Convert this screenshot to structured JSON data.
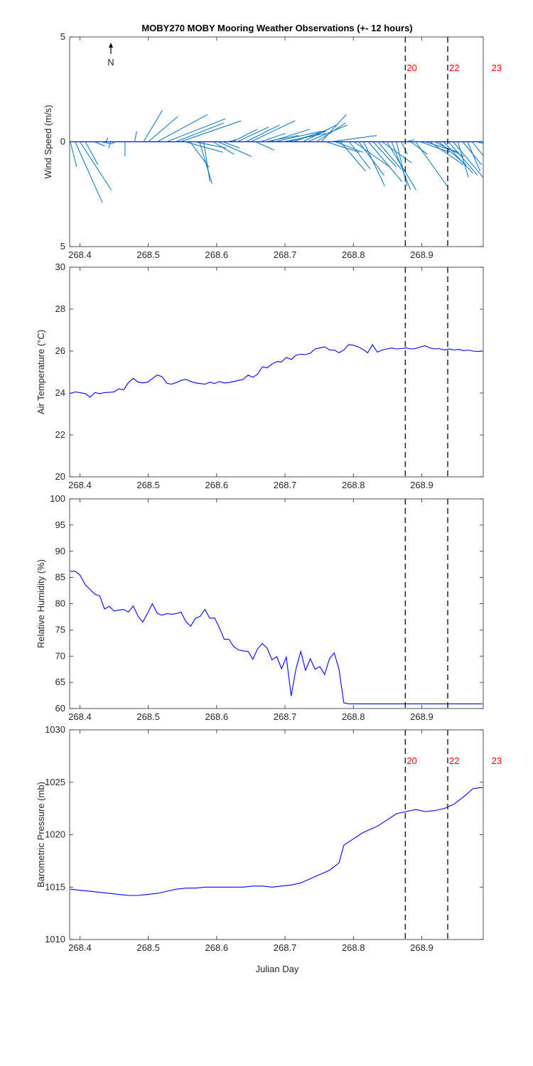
{
  "title": "MOBY270 MOBY Mooring Weather Observations (+- 12 hours)",
  "colors": {
    "line": "#0000ff",
    "stick": "#0072bd",
    "hour_label": "#ff0000",
    "axis": "#262626"
  },
  "north_label": "N",
  "xlabel": "Julian Day",
  "chart_data": [
    {
      "id": "wind",
      "type": "line",
      "title": "",
      "ylabel": "Wind Speed (m/s)",
      "xlim": [
        268.385,
        268.99
      ],
      "ylim": [
        -5,
        5
      ],
      "yticks": [
        -5,
        0,
        5
      ],
      "ytick_labels": [
        "5",
        "0",
        "5"
      ],
      "xticks": [
        268.4,
        268.5,
        268.6,
        268.7,
        268.8,
        268.9
      ],
      "xtick_labels": [
        "268.4",
        "268.5",
        "268.6",
        "268.7",
        "268.8",
        "268.9"
      ],
      "vlines": [
        268.876,
        268.938
      ],
      "hour_labels": [
        {
          "x": 268.876,
          "text": "20"
        },
        {
          "x": 268.938,
          "text": "22"
        },
        {
          "x": 269.0,
          "text": "23"
        }
      ],
      "sticks": [
        {
          "x": 268.386,
          "u": 0.3,
          "v": -1.2
        },
        {
          "x": 268.393,
          "u": 1.3,
          "v": -2.9
        },
        {
          "x": 268.4,
          "u": 1.5,
          "v": -2.3
        },
        {
          "x": 268.408,
          "u": 0.6,
          "v": -1.1
        },
        {
          "x": 268.421,
          "u": 0.5,
          "v": -0.2
        },
        {
          "x": 268.431,
          "u": 0.5,
          "v": -0.1
        },
        {
          "x": 268.438,
          "u": 0.1,
          "v": 0.2
        },
        {
          "x": 268.445,
          "u": -0.1,
          "v": -0.3
        },
        {
          "x": 268.452,
          "u": -0.2,
          "v": -0.1
        },
        {
          "x": 268.466,
          "u": 0.0,
          "v": -0.7
        },
        {
          "x": 268.48,
          "u": 0.1,
          "v": 0.5
        },
        {
          "x": 268.493,
          "u": 0.9,
          "v": 1.5
        },
        {
          "x": 268.5,
          "u": 1.4,
          "v": 1.2
        },
        {
          "x": 268.513,
          "u": 2.4,
          "v": 1.3
        },
        {
          "x": 268.527,
          "u": 2.8,
          "v": 1.1
        },
        {
          "x": 268.54,
          "u": 2.3,
          "v": 0.9
        },
        {
          "x": 268.547,
          "u": 2.9,
          "v": 1.0
        },
        {
          "x": 268.554,
          "u": 1.8,
          "v": -0.5
        },
        {
          "x": 268.561,
          "u": 0.9,
          "v": -1.2
        },
        {
          "x": 268.568,
          "u": 1.5,
          "v": -0.3
        },
        {
          "x": 268.575,
          "u": 0.6,
          "v": -2.0
        },
        {
          "x": 268.581,
          "u": 0.3,
          "v": -1.9
        },
        {
          "x": 268.595,
          "u": 1.0,
          "v": -0.6
        },
        {
          "x": 268.602,
          "u": 1.6,
          "v": -0.7
        },
        {
          "x": 268.609,
          "u": 0.8,
          "v": -0.3
        },
        {
          "x": 268.616,
          "u": 0.4,
          "v": 0.1
        },
        {
          "x": 268.623,
          "u": 1.2,
          "v": 0.6
        },
        {
          "x": 268.63,
          "u": 1.5,
          "v": 0.7
        },
        {
          "x": 268.643,
          "u": 1.6,
          "v": 0.8
        },
        {
          "x": 268.65,
          "u": 2.1,
          "v": 1.0
        },
        {
          "x": 268.657,
          "u": 0.9,
          "v": -0.4
        },
        {
          "x": 268.664,
          "u": 1.2,
          "v": 0.4
        },
        {
          "x": 268.671,
          "u": 1.6,
          "v": 0.3
        },
        {
          "x": 268.678,
          "u": 1.9,
          "v": 0.6
        },
        {
          "x": 268.685,
          "u": 2.2,
          "v": 0.5
        },
        {
          "x": 268.698,
          "u": 2.0,
          "v": 0.4
        },
        {
          "x": 268.705,
          "u": 1.8,
          "v": 0.5
        },
        {
          "x": 268.712,
          "u": 1.7,
          "v": 0.6
        },
        {
          "x": 268.726,
          "u": 1.6,
          "v": 0.8
        },
        {
          "x": 268.733,
          "u": 1.9,
          "v": 0.8
        },
        {
          "x": 268.746,
          "u": 1.4,
          "v": 0.9
        },
        {
          "x": 268.753,
          "u": 1.2,
          "v": 1.3
        },
        {
          "x": 268.76,
          "u": 1.6,
          "v": -0.5
        },
        {
          "x": 268.767,
          "u": 2.2,
          "v": 0.3
        },
        {
          "x": 268.774,
          "u": 1.3,
          "v": -0.5
        },
        {
          "x": 268.781,
          "u": 1.2,
          "v": -1.4
        },
        {
          "x": 268.794,
          "u": 1.0,
          "v": -1.3
        },
        {
          "x": 268.801,
          "u": 1.7,
          "v": -1.2
        },
        {
          "x": 268.808,
          "u": 1.2,
          "v": -1.6
        },
        {
          "x": 268.815,
          "u": 1.0,
          "v": -2.1
        },
        {
          "x": 268.822,
          "u": 1.6,
          "v": -1.9
        },
        {
          "x": 268.829,
          "u": 1.1,
          "v": -1.2
        },
        {
          "x": 268.836,
          "u": 1.1,
          "v": -1.3
        },
        {
          "x": 268.842,
          "u": 1.4,
          "v": -1.0
        },
        {
          "x": 268.849,
          "u": 1.4,
          "v": -2.3
        },
        {
          "x": 268.856,
          "u": 0.9,
          "v": -2.3
        },
        {
          "x": 268.863,
          "u": 0.5,
          "v": -2.1
        },
        {
          "x": 268.87,
          "u": 0.3,
          "v": -0.6
        },
        {
          "x": 268.877,
          "u": 0.4,
          "v": 0.1
        },
        {
          "x": 268.884,
          "u": 0.8,
          "v": -0.6
        },
        {
          "x": 268.891,
          "u": 1.5,
          "v": -2.1
        },
        {
          "x": 268.898,
          "u": 1.4,
          "v": -0.5
        },
        {
          "x": 268.905,
          "u": 1.6,
          "v": -0.5
        },
        {
          "x": 268.912,
          "u": 1.6,
          "v": -1.1
        },
        {
          "x": 268.919,
          "u": 1.4,
          "v": -0.7
        },
        {
          "x": 268.925,
          "u": 1.3,
          "v": -1.1
        },
        {
          "x": 268.932,
          "u": 1.4,
          "v": -1.5
        },
        {
          "x": 268.939,
          "u": 1.4,
          "v": -1.6
        },
        {
          "x": 268.946,
          "u": 1.6,
          "v": -1.9
        },
        {
          "x": 268.953,
          "u": 0.5,
          "v": -1.7
        },
        {
          "x": 268.96,
          "u": 0.9,
          "v": -1.1
        },
        {
          "x": 268.967,
          "u": 0.6,
          "v": -1.4
        },
        {
          "x": 268.974,
          "u": 1.1,
          "v": -1.4
        },
        {
          "x": 268.981,
          "u": 1.4,
          "v": -0.4
        },
        {
          "x": 268.988,
          "u": 0.6,
          "v": -0.3
        }
      ]
    },
    {
      "id": "temp",
      "type": "line",
      "ylabel": "Air Temperature (°C)",
      "xlim": [
        268.385,
        268.99
      ],
      "ylim": [
        20,
        30
      ],
      "yticks": [
        20,
        22,
        24,
        26,
        28,
        30
      ],
      "ytick_labels": [
        "20",
        "22",
        "24",
        "26",
        "28",
        "30"
      ],
      "xticks": [
        268.4,
        268.5,
        268.6,
        268.7,
        268.8,
        268.9
      ],
      "xtick_labels": [
        "268.4",
        "268.5",
        "268.6",
        "268.7",
        "268.8",
        "268.9"
      ],
      "vlines": [
        268.876,
        268.938
      ],
      "x": [
        268.386,
        268.393,
        268.4,
        268.408,
        268.415,
        268.422,
        268.429,
        268.436,
        268.443,
        268.45,
        268.457,
        268.464,
        268.471,
        268.478,
        268.485,
        268.492,
        268.499,
        268.506,
        268.513,
        268.52,
        268.527,
        268.534,
        268.541,
        268.548,
        268.555,
        268.562,
        268.569,
        268.576,
        268.583,
        268.59,
        268.597,
        268.604,
        268.611,
        268.618,
        268.625,
        268.632,
        268.639,
        268.646,
        268.653,
        268.66,
        268.667,
        268.674,
        268.681,
        268.688,
        268.695,
        268.702,
        268.709,
        268.716,
        268.723,
        268.73,
        268.737,
        268.744,
        268.751,
        268.758,
        268.765,
        268.772,
        268.779,
        268.786,
        268.793,
        268.8,
        268.807,
        268.814,
        268.821,
        268.828,
        268.835,
        268.842,
        268.849,
        268.856,
        268.863,
        268.87,
        268.877,
        268.884,
        268.891,
        268.898,
        268.905,
        268.912,
        268.919,
        268.926,
        268.933,
        268.94,
        268.947,
        268.954,
        268.961,
        268.968,
        268.975,
        268.982,
        268.989
      ],
      "y": [
        23.98,
        24.05,
        24.02,
        23.97,
        23.8,
        24.02,
        23.97,
        24.02,
        24.03,
        24.05,
        24.2,
        24.15,
        24.5,
        24.7,
        24.52,
        24.48,
        24.52,
        24.68,
        24.86,
        24.78,
        24.47,
        24.42,
        24.5,
        24.6,
        24.65,
        24.55,
        24.48,
        24.45,
        24.42,
        24.52,
        24.45,
        24.55,
        24.48,
        24.5,
        24.55,
        24.6,
        24.65,
        24.85,
        24.75,
        24.9,
        25.25,
        25.2,
        25.38,
        25.5,
        25.48,
        25.7,
        25.6,
        25.8,
        25.85,
        25.83,
        25.9,
        26.1,
        26.15,
        26.2,
        26.05,
        26.05,
        25.92,
        26.05,
        26.3,
        26.28,
        26.2,
        26.08,
        25.92,
        26.3,
        25.95,
        26.05,
        26.1,
        26.15,
        26.1,
        26.12,
        26.15,
        26.1,
        26.12,
        26.2,
        26.25,
        26.15,
        26.1,
        26.12,
        26.05,
        26.1,
        26.05,
        26.08,
        26.02,
        26.05,
        26.0,
        25.98,
        26.0
      ]
    },
    {
      "id": "rh",
      "type": "line",
      "ylabel": "Relative Humidity (%)",
      "xlim": [
        268.385,
        268.99
      ],
      "ylim": [
        60,
        100
      ],
      "yticks": [
        60,
        65,
        70,
        75,
        80,
        85,
        90,
        95,
        100
      ],
      "ytick_labels": [
        "60",
        "65",
        "70",
        "75",
        "80",
        "85",
        "90",
        "95",
        "100"
      ],
      "xticks": [
        268.4,
        268.5,
        268.6,
        268.7,
        268.8,
        268.9
      ],
      "xtick_labels": [
        "268.4",
        "268.5",
        "268.6",
        "268.7",
        "268.8",
        "268.9"
      ],
      "vlines": [
        268.876,
        268.938
      ],
      "x": [
        268.386,
        268.393,
        268.4,
        268.408,
        268.415,
        268.422,
        268.429,
        268.436,
        268.443,
        268.45,
        268.457,
        268.464,
        268.471,
        268.478,
        268.485,
        268.492,
        268.499,
        268.506,
        268.513,
        268.52,
        268.527,
        268.534,
        268.541,
        268.548,
        268.555,
        268.562,
        268.569,
        268.576,
        268.583,
        268.59,
        268.597,
        268.604,
        268.611,
        268.618,
        268.625,
        268.632,
        268.639,
        268.646,
        268.653,
        268.66,
        268.667,
        268.674,
        268.681,
        268.688,
        268.695,
        268.702,
        268.709,
        268.716,
        268.723,
        268.73,
        268.737,
        268.744,
        268.751,
        268.758,
        268.765,
        268.772,
        268.779,
        268.786,
        268.793,
        268.8,
        268.807,
        268.814,
        268.821,
        268.828,
        268.835,
        268.842,
        268.849,
        268.856,
        268.863,
        268.87,
        268.877,
        268.884,
        268.891,
        268.898,
        268.905,
        268.912,
        268.919,
        268.926,
        268.933,
        268.94,
        268.947,
        268.954,
        268.961,
        268.968,
        268.975,
        268.982,
        268.989
      ],
      "y": [
        86.2,
        86.2,
        85.5,
        83.6,
        82.7,
        81.8,
        81.5,
        79.0,
        79.5,
        78.6,
        78.8,
        78.9,
        78.4,
        79.6,
        77.6,
        76.5,
        78.2,
        80.0,
        78.2,
        77.8,
        78.1,
        78.0,
        78.1,
        78.4,
        76.6,
        75.7,
        77.2,
        77.6,
        78.9,
        77.2,
        77.3,
        75.4,
        73.2,
        73.2,
        71.8,
        71.2,
        71.0,
        70.9,
        69.4,
        71.4,
        72.4,
        71.5,
        69.3,
        69.9,
        67.6,
        69.8,
        62.4,
        67.5,
        70.9,
        67.3,
        69.5,
        67.5,
        68.0,
        66.5,
        69.5,
        70.6,
        67.5,
        61.1,
        60.9,
        60.9,
        60.9,
        60.9,
        60.9,
        60.9,
        60.9,
        60.9,
        60.9,
        60.9,
        60.9,
        60.9,
        60.9,
        60.9,
        60.9,
        60.9,
        60.9,
        60.9,
        60.9,
        60.9,
        60.9,
        60.9,
        60.9,
        60.9,
        60.9,
        60.9,
        60.9,
        60.9,
        60.9
      ]
    },
    {
      "id": "pres",
      "type": "line",
      "ylabel": "Barometric Pressure (mb)",
      "xlim": [
        268.385,
        268.99
      ],
      "ylim": [
        1010,
        1030
      ],
      "yticks": [
        1010,
        1015,
        1020,
        1025,
        1030
      ],
      "ytick_labels": [
        "1010",
        "1015",
        "1020",
        "1025",
        "1030"
      ],
      "xticks": [
        268.4,
        268.5,
        268.6,
        268.7,
        268.8,
        268.9
      ],
      "xtick_labels": [
        "268.4",
        "268.5",
        "268.6",
        "268.7",
        "268.8",
        "268.9"
      ],
      "vlines": [
        268.876,
        268.938
      ],
      "hour_labels": [
        {
          "x": 268.876,
          "text": "20"
        },
        {
          "x": 268.938,
          "text": "22"
        },
        {
          "x": 269.0,
          "text": "23"
        }
      ],
      "x": [
        268.386,
        268.4,
        268.415,
        268.429,
        268.443,
        268.457,
        268.471,
        268.485,
        268.499,
        268.513,
        268.527,
        268.541,
        268.555,
        268.569,
        268.583,
        268.597,
        268.611,
        268.625,
        268.639,
        268.653,
        268.667,
        268.681,
        268.695,
        268.709,
        268.723,
        268.737,
        268.751,
        268.765,
        268.779,
        268.786,
        268.793,
        268.8,
        268.807,
        268.814,
        268.821,
        268.835,
        268.849,
        268.863,
        268.877,
        268.891,
        268.905,
        268.919,
        268.933,
        268.947,
        268.961,
        268.975,
        268.989
      ],
      "y": [
        1014.8,
        1014.7,
        1014.6,
        1014.5,
        1014.4,
        1014.3,
        1014.2,
        1014.2,
        1014.3,
        1014.4,
        1014.6,
        1014.8,
        1014.9,
        1014.9,
        1015.0,
        1015.0,
        1015.0,
        1015.0,
        1015.0,
        1015.1,
        1015.1,
        1015.0,
        1015.1,
        1015.2,
        1015.4,
        1015.8,
        1016.2,
        1016.6,
        1017.3,
        1019.0,
        1019.3,
        1019.6,
        1019.9,
        1020.2,
        1020.4,
        1020.8,
        1021.4,
        1022.0,
        1022.2,
        1022.4,
        1022.2,
        1022.3,
        1022.5,
        1022.9,
        1023.6,
        1024.4,
        1024.5
      ]
    }
  ]
}
